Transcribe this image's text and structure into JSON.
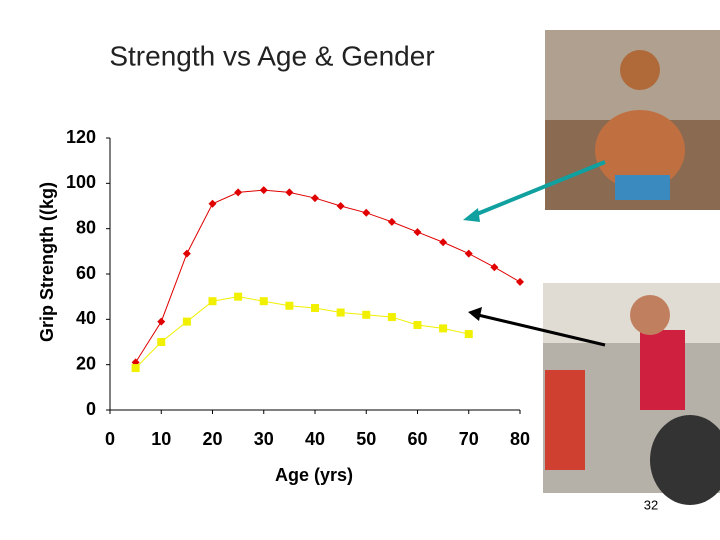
{
  "chart_data": {
    "type": "line",
    "title": "Strength vs Age & Gender",
    "x_label": "Age (yrs)",
    "y_label": "Grip Strength ((kg)",
    "x": [
      5,
      10,
      15,
      20,
      25,
      30,
      35,
      40,
      45,
      50,
      55,
      60,
      65,
      70,
      75,
      80
    ],
    "series": [
      {
        "color": "#e00000",
        "values": [
          21,
          39,
          69,
          91,
          96,
          97,
          96,
          93.5,
          90,
          87,
          83,
          78.5,
          74,
          69,
          63,
          56.5
        ]
      },
      {
        "color": "#f0f000",
        "values": [
          18.5,
          30,
          39,
          48,
          50,
          48,
          46,
          45,
          43,
          42,
          41,
          37.5,
          36,
          33.5,
          null,
          null
        ]
      }
    ],
    "xlim": [
      0,
      80
    ],
    "xticks": [
      0,
      10,
      20,
      30,
      40,
      50,
      60,
      70,
      80
    ],
    "ylim": [
      0,
      120
    ],
    "yticks": [
      0,
      20,
      40,
      60,
      80,
      100,
      120
    ]
  },
  "slide": {
    "page_number": "32"
  }
}
